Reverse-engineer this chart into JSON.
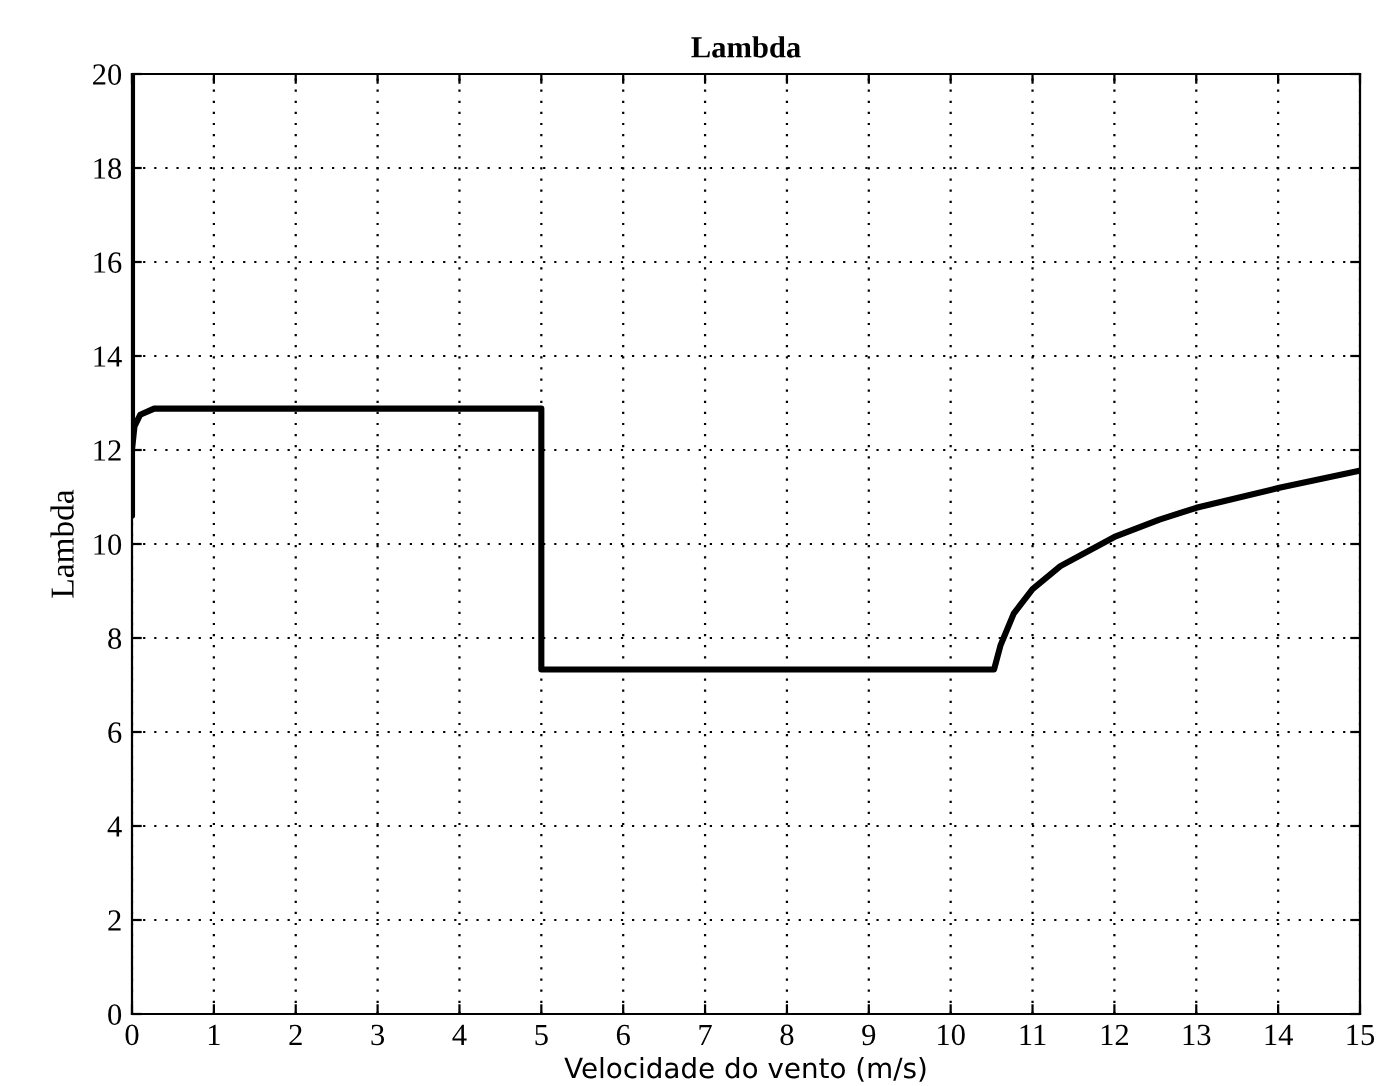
{
  "chart_data": {
    "type": "line",
    "title": "Lambda",
    "xlabel": "Velocidade do vento (m/s)",
    "ylabel": "Lambda",
    "x": [
      0,
      0,
      0,
      0.03,
      0.1,
      0.27,
      5,
      5,
      10.53,
      10.61,
      10.77,
      11,
      11.34,
      12,
      12.55,
      13,
      14,
      15
    ],
    "series": [
      {
        "color": "#000000",
        "values": [
          20,
          10.6,
          12,
          12.5,
          12.75,
          12.88,
          12.88,
          7.33,
          7.33,
          7.85,
          8.52,
          9.04,
          9.53,
          10.15,
          10.52,
          10.77,
          11.19,
          11.56
        ]
      }
    ],
    "xlim": [
      0,
      15
    ],
    "xticks": [
      0,
      1,
      2,
      3,
      4,
      5,
      6,
      7,
      8,
      9,
      10,
      11,
      12,
      13,
      14,
      15
    ],
    "ylim": [
      0,
      20
    ],
    "yticks": [
      0,
      2,
      4,
      6,
      8,
      10,
      12,
      14,
      16,
      18,
      20
    ],
    "grid": true,
    "line_style": "solid",
    "marker": "none"
  }
}
